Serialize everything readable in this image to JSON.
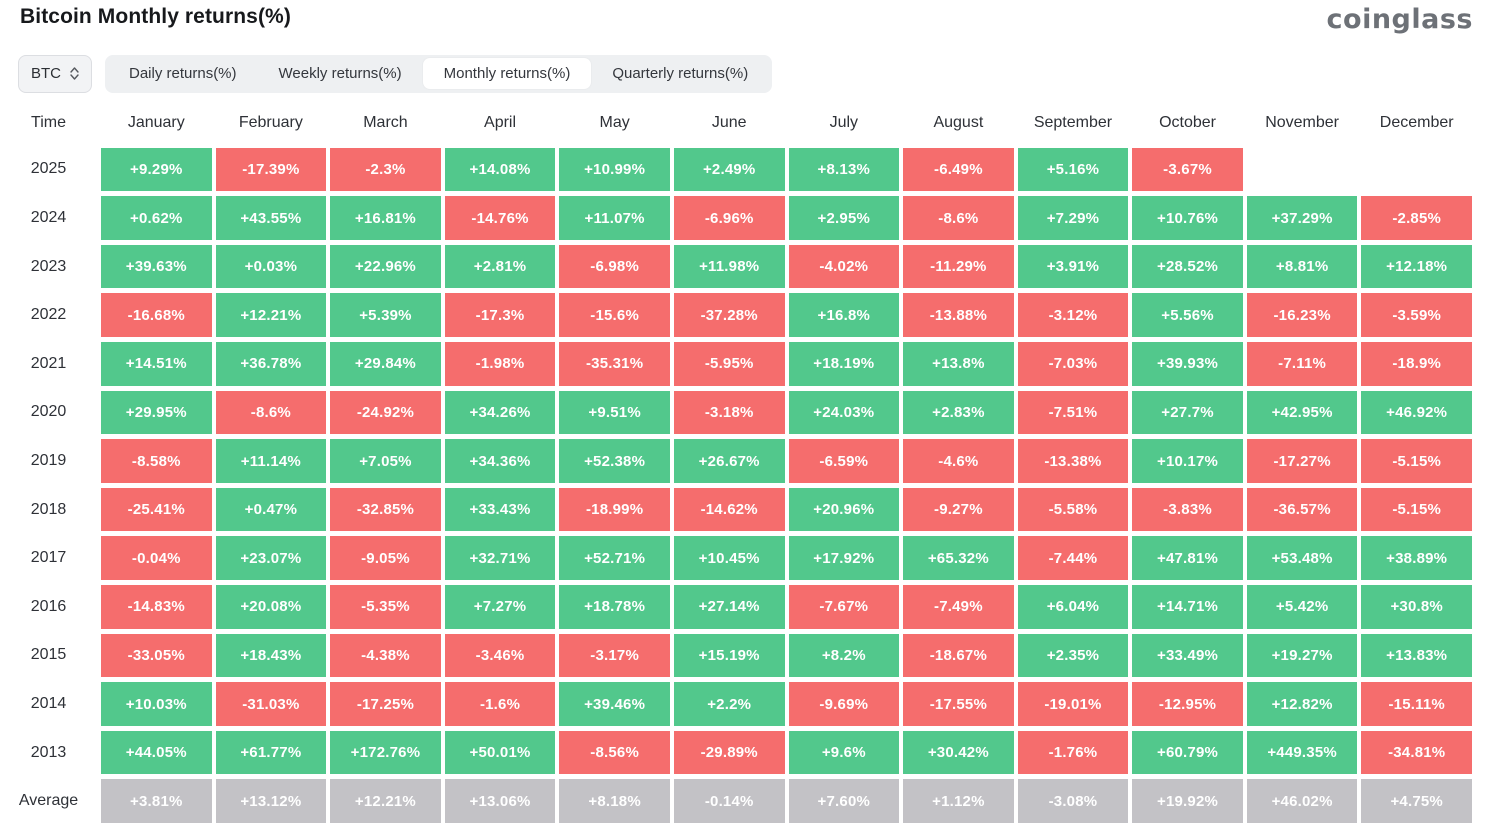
{
  "page": {
    "title": "Bitcoin Monthly returns(%)",
    "brand": "coinglass"
  },
  "controls": {
    "symbol_select": {
      "value": "BTC",
      "icon": "up-down-chevrons"
    },
    "tabs": [
      {
        "label": "Daily returns(%)",
        "active": false
      },
      {
        "label": "Weekly returns(%)",
        "active": false
      },
      {
        "label": "Monthly returns(%)",
        "active": true
      },
      {
        "label": "Quarterly returns(%)",
        "active": false
      }
    ]
  },
  "colors": {
    "positive": "#52c88c",
    "negative": "#f56d6d",
    "average": "#c3c2c6"
  },
  "chart_data": {
    "type": "heatmap",
    "title": "Bitcoin Monthly returns(%)",
    "legend_position": "none",
    "columns": [
      "Time",
      "January",
      "February",
      "March",
      "April",
      "May",
      "June",
      "July",
      "August",
      "September",
      "October",
      "November",
      "December"
    ],
    "rows": [
      {
        "label": "2025",
        "values": [
          "+9.29%",
          "-17.39%",
          "-2.3%",
          "+14.08%",
          "+10.99%",
          "+2.49%",
          "+8.13%",
          "-6.49%",
          "+5.16%",
          "-3.67%",
          null,
          null
        ]
      },
      {
        "label": "2024",
        "values": [
          "+0.62%",
          "+43.55%",
          "+16.81%",
          "-14.76%",
          "+11.07%",
          "-6.96%",
          "+2.95%",
          "-8.6%",
          "+7.29%",
          "+10.76%",
          "+37.29%",
          "-2.85%"
        ]
      },
      {
        "label": "2023",
        "values": [
          "+39.63%",
          "+0.03%",
          "+22.96%",
          "+2.81%",
          "-6.98%",
          "+11.98%",
          "-4.02%",
          "-11.29%",
          "+3.91%",
          "+28.52%",
          "+8.81%",
          "+12.18%"
        ]
      },
      {
        "label": "2022",
        "values": [
          "-16.68%",
          "+12.21%",
          "+5.39%",
          "-17.3%",
          "-15.6%",
          "-37.28%",
          "+16.8%",
          "-13.88%",
          "-3.12%",
          "+5.56%",
          "-16.23%",
          "-3.59%"
        ]
      },
      {
        "label": "2021",
        "values": [
          "+14.51%",
          "+36.78%",
          "+29.84%",
          "-1.98%",
          "-35.31%",
          "-5.95%",
          "+18.19%",
          "+13.8%",
          "-7.03%",
          "+39.93%",
          "-7.11%",
          "-18.9%"
        ]
      },
      {
        "label": "2020",
        "values": [
          "+29.95%",
          "-8.6%",
          "-24.92%",
          "+34.26%",
          "+9.51%",
          "-3.18%",
          "+24.03%",
          "+2.83%",
          "-7.51%",
          "+27.7%",
          "+42.95%",
          "+46.92%"
        ]
      },
      {
        "label": "2019",
        "values": [
          "-8.58%",
          "+11.14%",
          "+7.05%",
          "+34.36%",
          "+52.38%",
          "+26.67%",
          "-6.59%",
          "-4.6%",
          "-13.38%",
          "+10.17%",
          "-17.27%",
          "-5.15%"
        ]
      },
      {
        "label": "2018",
        "values": [
          "-25.41%",
          "+0.47%",
          "-32.85%",
          "+33.43%",
          "-18.99%",
          "-14.62%",
          "+20.96%",
          "-9.27%",
          "-5.58%",
          "-3.83%",
          "-36.57%",
          "-5.15%"
        ]
      },
      {
        "label": "2017",
        "values": [
          "-0.04%",
          "+23.07%",
          "-9.05%",
          "+32.71%",
          "+52.71%",
          "+10.45%",
          "+17.92%",
          "+65.32%",
          "-7.44%",
          "+47.81%",
          "+53.48%",
          "+38.89%"
        ]
      },
      {
        "label": "2016",
        "values": [
          "-14.83%",
          "+20.08%",
          "-5.35%",
          "+7.27%",
          "+18.78%",
          "+27.14%",
          "-7.67%",
          "-7.49%",
          "+6.04%",
          "+14.71%",
          "+5.42%",
          "+30.8%"
        ]
      },
      {
        "label": "2015",
        "values": [
          "-33.05%",
          "+18.43%",
          "-4.38%",
          "-3.46%",
          "-3.17%",
          "+15.19%",
          "+8.2%",
          "-18.67%",
          "+2.35%",
          "+33.49%",
          "+19.27%",
          "+13.83%"
        ]
      },
      {
        "label": "2014",
        "values": [
          "+10.03%",
          "-31.03%",
          "-17.25%",
          "-1.6%",
          "+39.46%",
          "+2.2%",
          "-9.69%",
          "-17.55%",
          "-19.01%",
          "-12.95%",
          "+12.82%",
          "-15.11%"
        ]
      },
      {
        "label": "2013",
        "values": [
          "+44.05%",
          "+61.77%",
          "+172.76%",
          "+50.01%",
          "-8.56%",
          "-29.89%",
          "+9.6%",
          "+30.42%",
          "-1.76%",
          "+60.79%",
          "+449.35%",
          "-34.81%"
        ]
      },
      {
        "label": "Average",
        "type": "average",
        "values": [
          "+3.81%",
          "+13.12%",
          "+12.21%",
          "+13.06%",
          "+8.18%",
          "-0.14%",
          "+7.60%",
          "+1.12%",
          "-3.08%",
          "+19.92%",
          "+46.02%",
          "+4.75%"
        ]
      }
    ]
  }
}
